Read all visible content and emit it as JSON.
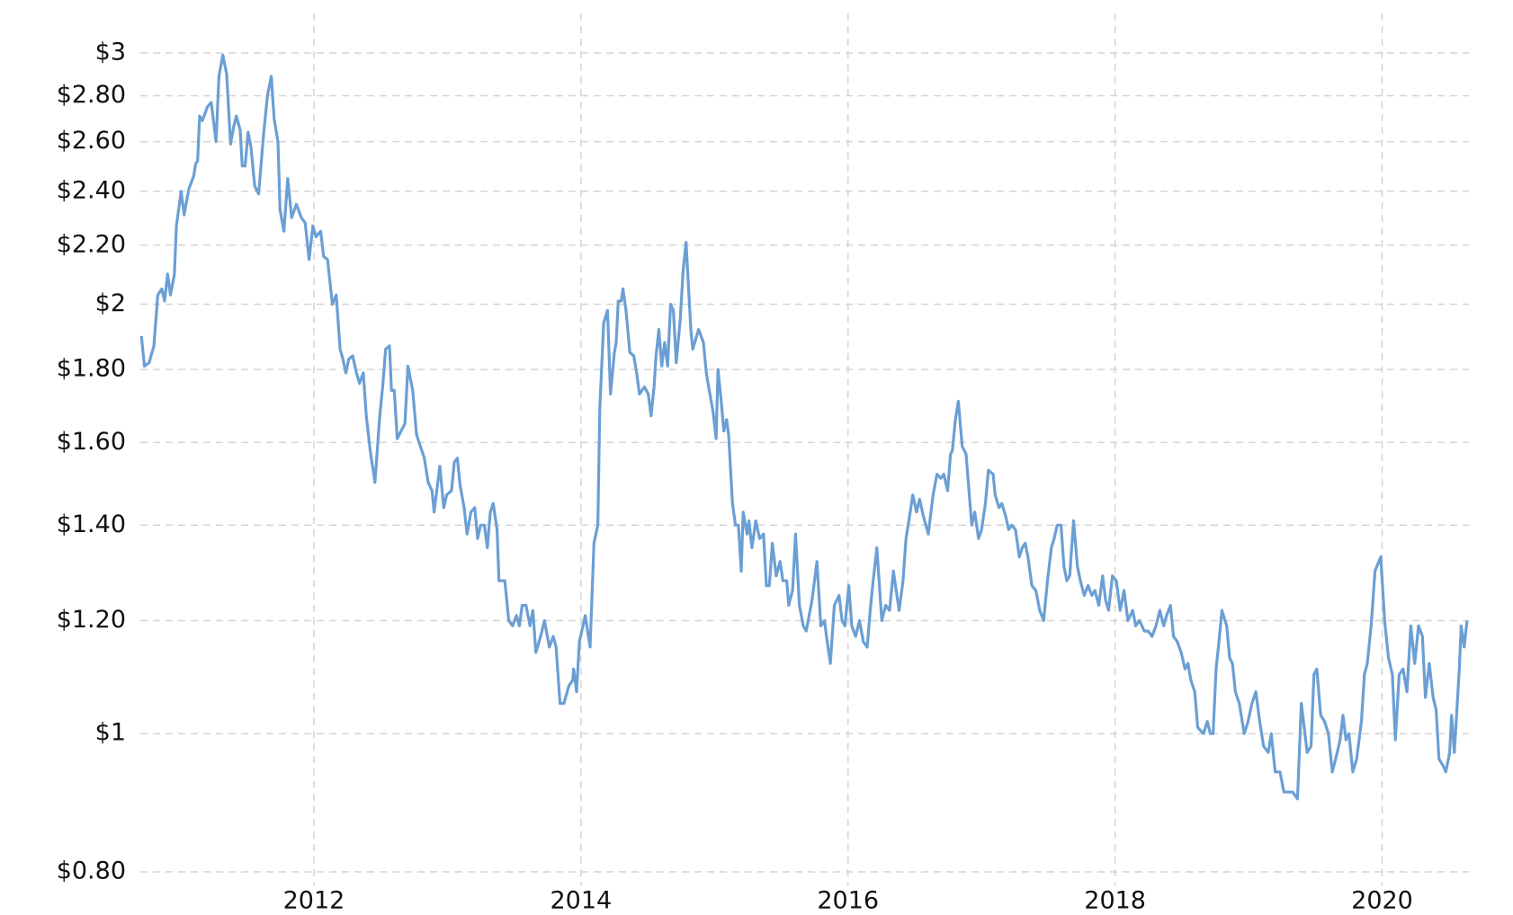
{
  "chart_data": {
    "type": "line",
    "log_scale": true,
    "grid": true,
    "color": "#6b9fd4",
    "xlim": [
      2010.7,
      2020.65
    ],
    "xticks": [
      2012,
      2014,
      2016,
      2018,
      2020
    ],
    "ylim": [
      0.8,
      3
    ],
    "yticks": [
      {
        "value": 0.8,
        "label": "$0.80"
      },
      {
        "value": 1,
        "label": "$1"
      },
      {
        "value": 1.2,
        "label": "$1.20"
      },
      {
        "value": 1.4,
        "label": "$1.40"
      },
      {
        "value": 1.6,
        "label": "$1.60"
      },
      {
        "value": 1.8,
        "label": "$1.80"
      },
      {
        "value": 2,
        "label": "$2"
      },
      {
        "value": 2.2,
        "label": "$2.20"
      },
      {
        "value": 2.4,
        "label": "$2.40"
      },
      {
        "value": 2.6,
        "label": "$2.60"
      },
      {
        "value": 2.8,
        "label": "$2.80"
      },
      {
        "value": 3,
        "label": "$3"
      }
    ],
    "x": [
      2010.708,
      2010.73,
      2010.766,
      2010.802,
      2010.831,
      2010.861,
      2010.882,
      2010.904,
      2010.926,
      2010.955,
      2010.97,
      2011.006,
      2011.028,
      2011.064,
      2011.1,
      2011.115,
      2011.129,
      2011.144,
      2011.165,
      2011.202,
      2011.231,
      2011.267,
      2011.289,
      2011.318,
      2011.347,
      2011.376,
      2011.398,
      2011.419,
      2011.448,
      2011.463,
      2011.485,
      2011.507,
      2011.528,
      2011.557,
      2011.586,
      2011.623,
      2011.652,
      2011.681,
      2011.702,
      2011.731,
      2011.746,
      2011.775,
      2011.804,
      2011.833,
      2011.869,
      2011.906,
      2011.935,
      2011.964,
      2011.993,
      2012.015,
      2012.051,
      2012.073,
      2012.102,
      2012.138,
      2012.167,
      2012.196,
      2012.218,
      2012.239,
      2012.261,
      2012.29,
      2012.319,
      2012.341,
      2012.37,
      2012.392,
      2012.421,
      2012.457,
      2012.493,
      2012.515,
      2012.537,
      2012.566,
      2012.581,
      2012.602,
      2012.624,
      2012.653,
      2012.682,
      2012.704,
      2012.74,
      2012.769,
      2012.798,
      2012.827,
      2012.856,
      2012.885,
      2012.9,
      2012.943,
      2012.972,
      2012.994,
      2013.03,
      2013.052,
      2013.074,
      2013.096,
      2013.125,
      2013.147,
      2013.176,
      2013.205,
      2013.226,
      2013.248,
      2013.277,
      2013.299,
      2013.321,
      2013.343,
      2013.372,
      2013.386,
      2013.43,
      2013.459,
      2013.488,
      2013.517,
      2013.539,
      2013.56,
      2013.589,
      2013.618,
      2013.64,
      2013.662,
      2013.698,
      2013.727,
      2013.763,
      2013.792,
      2013.814,
      2013.843,
      2013.872,
      2013.909,
      2013.938,
      2013.945,
      2013.967,
      2013.988,
      2014.032,
      2014.068,
      2014.097,
      2014.126,
      2014.141,
      2014.17,
      2014.199,
      2014.221,
      2014.25,
      2014.264,
      2014.279,
      2014.301,
      2014.315,
      2014.337,
      2014.366,
      2014.395,
      2014.417,
      2014.438,
      2014.475,
      2014.504,
      2014.525,
      2014.547,
      2014.562,
      2014.583,
      2014.605,
      2014.627,
      2014.649,
      2014.671,
      2014.692,
      2014.714,
      2014.743,
      2014.765,
      2014.787,
      2014.823,
      2014.837,
      2014.881,
      2014.917,
      2014.939,
      2014.961,
      2014.99,
      2015.012,
      2015.026,
      2015.048,
      2015.07,
      2015.091,
      2015.106,
      2015.135,
      2015.157,
      2015.179,
      2015.2,
      2015.215,
      2015.244,
      2015.258,
      2015.28,
      2015.309,
      2015.338,
      2015.367,
      2015.389,
      2015.411,
      2015.433,
      2015.462,
      2015.491,
      2015.512,
      2015.541,
      2015.556,
      2015.585,
      2015.607,
      2015.636,
      2015.665,
      2015.687,
      2015.73,
      2015.767,
      2015.796,
      2015.824,
      2015.839,
      2015.868,
      2015.897,
      2015.933,
      2015.955,
      2015.977,
      2016.006,
      2016.028,
      2016.057,
      2016.086,
      2016.115,
      2016.144,
      2016.166,
      2016.188,
      2016.216,
      2016.253,
      2016.282,
      2016.311,
      2016.34,
      2016.361,
      2016.383,
      2016.412,
      2016.434,
      2016.456,
      2016.485,
      2016.514,
      2016.536,
      2016.565,
      2016.601,
      2016.637,
      2016.666,
      2016.695,
      2016.717,
      2016.746,
      2016.768,
      2016.782,
      2016.804,
      2016.826,
      2016.855,
      2016.884,
      2016.906,
      2016.927,
      2016.949,
      2016.978,
      2017.0,
      2017.029,
      2017.051,
      2017.087,
      2017.102,
      2017.131,
      2017.152,
      2017.181,
      2017.203,
      2017.225,
      2017.254,
      2017.283,
      2017.305,
      2017.327,
      2017.348,
      2017.377,
      2017.406,
      2017.436,
      2017.465,
      2017.494,
      2017.523,
      2017.544,
      2017.566,
      2017.595,
      2017.617,
      2017.639,
      2017.66,
      2017.689,
      2017.718,
      2017.74,
      2017.769,
      2017.798,
      2017.827,
      2017.849,
      2017.878,
      2017.907,
      2017.929,
      2017.951,
      2017.98,
      2018.009,
      2018.038,
      2018.067,
      2018.096,
      2018.132,
      2018.154,
      2018.183,
      2018.219,
      2018.248,
      2018.277,
      2018.306,
      2018.335,
      2018.364,
      2018.386,
      2018.415,
      2018.438,
      2018.466,
      2018.495,
      2018.524,
      2018.546,
      2018.568,
      2018.597,
      2018.619,
      2018.662,
      2018.691,
      2018.713,
      2018.734,
      2018.756,
      2018.778,
      2018.8,
      2018.836,
      2018.858,
      2018.879,
      2018.901,
      2018.93,
      2018.967,
      2018.996,
      2019.025,
      2019.054,
      2019.083,
      2019.112,
      2019.148,
      2019.17,
      2019.199,
      2019.235,
      2019.264,
      2019.293,
      2019.33,
      2019.366,
      2019.395,
      2019.439,
      2019.468,
      2019.489,
      2019.511,
      2019.54,
      2019.569,
      2019.598,
      2019.627,
      2019.664,
      2019.685,
      2019.707,
      2019.729,
      2019.751,
      2019.78,
      2019.809,
      2019.845,
      2019.867,
      2019.889,
      2019.918,
      2019.947,
      2019.961,
      2019.99,
      2020.019,
      2020.048,
      2020.077,
      2020.099,
      2020.128,
      2020.157,
      2020.186,
      2020.215,
      2020.244,
      2020.273,
      2020.302,
      2020.324,
      2020.353,
      2020.382,
      2020.404,
      2020.426,
      2020.455,
      2020.477,
      2020.506,
      2020.52,
      2020.541,
      2020.578,
      2020.592,
      2020.614,
      2020.636
    ],
    "values": [
      1.9,
      1.81,
      1.82,
      1.87,
      2.03,
      2.05,
      2.01,
      2.1,
      2.03,
      2.1,
      2.27,
      2.4,
      2.31,
      2.41,
      2.46,
      2.51,
      2.52,
      2.71,
      2.69,
      2.75,
      2.77,
      2.6,
      2.89,
      2.99,
      2.9,
      2.59,
      2.66,
      2.71,
      2.65,
      2.5,
      2.5,
      2.64,
      2.58,
      2.42,
      2.39,
      2.63,
      2.8,
      2.89,
      2.7,
      2.6,
      2.33,
      2.25,
      2.45,
      2.3,
      2.35,
      2.3,
      2.28,
      2.15,
      2.27,
      2.23,
      2.25,
      2.16,
      2.15,
      2.0,
      2.03,
      1.86,
      1.83,
      1.79,
      1.83,
      1.84,
      1.79,
      1.76,
      1.79,
      1.67,
      1.58,
      1.5,
      1.67,
      1.75,
      1.86,
      1.87,
      1.74,
      1.74,
      1.61,
      1.63,
      1.65,
      1.81,
      1.74,
      1.62,
      1.59,
      1.56,
      1.5,
      1.48,
      1.43,
      1.54,
      1.44,
      1.47,
      1.48,
      1.55,
      1.56,
      1.49,
      1.44,
      1.38,
      1.43,
      1.44,
      1.37,
      1.4,
      1.4,
      1.35,
      1.43,
      1.45,
      1.39,
      1.28,
      1.28,
      1.2,
      1.19,
      1.21,
      1.19,
      1.23,
      1.23,
      1.19,
      1.22,
      1.14,
      1.17,
      1.2,
      1.15,
      1.17,
      1.15,
      1.05,
      1.05,
      1.08,
      1.09,
      1.11,
      1.07,
      1.16,
      1.21,
      1.15,
      1.36,
      1.4,
      1.69,
      1.94,
      1.98,
      1.73,
      1.85,
      1.88,
      2.01,
      2.01,
      2.05,
      1.98,
      1.85,
      1.84,
      1.79,
      1.73,
      1.75,
      1.73,
      1.67,
      1.75,
      1.84,
      1.92,
      1.81,
      1.88,
      1.81,
      2.0,
      1.98,
      1.82,
      1.95,
      2.11,
      2.21,
      1.92,
      1.86,
      1.92,
      1.88,
      1.79,
      1.74,
      1.68,
      1.61,
      1.8,
      1.72,
      1.63,
      1.66,
      1.62,
      1.45,
      1.4,
      1.4,
      1.3,
      1.43,
      1.38,
      1.41,
      1.35,
      1.41,
      1.37,
      1.38,
      1.27,
      1.27,
      1.36,
      1.29,
      1.32,
      1.28,
      1.28,
      1.23,
      1.26,
      1.38,
      1.23,
      1.19,
      1.18,
      1.24,
      1.32,
      1.19,
      1.2,
      1.17,
      1.12,
      1.23,
      1.25,
      1.2,
      1.19,
      1.27,
      1.19,
      1.17,
      1.2,
      1.16,
      1.15,
      1.22,
      1.28,
      1.35,
      1.2,
      1.23,
      1.22,
      1.3,
      1.26,
      1.22,
      1.28,
      1.37,
      1.41,
      1.47,
      1.43,
      1.46,
      1.42,
      1.38,
      1.47,
      1.52,
      1.51,
      1.52,
      1.48,
      1.57,
      1.58,
      1.66,
      1.71,
      1.59,
      1.57,
      1.48,
      1.4,
      1.43,
      1.37,
      1.39,
      1.45,
      1.53,
      1.52,
      1.47,
      1.44,
      1.45,
      1.42,
      1.39,
      1.4,
      1.39,
      1.33,
      1.35,
      1.36,
      1.33,
      1.27,
      1.26,
      1.22,
      1.2,
      1.28,
      1.35,
      1.37,
      1.4,
      1.4,
      1.31,
      1.28,
      1.29,
      1.41,
      1.31,
      1.28,
      1.25,
      1.27,
      1.25,
      1.26,
      1.23,
      1.29,
      1.24,
      1.22,
      1.29,
      1.28,
      1.22,
      1.26,
      1.2,
      1.22,
      1.19,
      1.2,
      1.18,
      1.18,
      1.17,
      1.19,
      1.22,
      1.19,
      1.21,
      1.23,
      1.17,
      1.16,
      1.14,
      1.11,
      1.12,
      1.09,
      1.07,
      1.01,
      1.0,
      1.02,
      1.0,
      1.0,
      1.11,
      1.16,
      1.22,
      1.19,
      1.13,
      1.12,
      1.07,
      1.05,
      1.0,
      1.02,
      1.05,
      1.07,
      1.02,
      0.98,
      0.97,
      1.0,
      0.94,
      0.94,
      0.91,
      0.91,
      0.91,
      0.9,
      1.05,
      0.97,
      0.98,
      1.1,
      1.11,
      1.03,
      1.02,
      1.0,
      0.94,
      0.97,
      0.99,
      1.03,
      0.99,
      1.0,
      0.94,
      0.96,
      1.02,
      1.1,
      1.12,
      1.19,
      1.3,
      1.31,
      1.33,
      1.2,
      1.13,
      1.1,
      0.99,
      1.1,
      1.11,
      1.07,
      1.19,
      1.12,
      1.19,
      1.17,
      1.06,
      1.12,
      1.06,
      1.04,
      0.96,
      0.95,
      0.94,
      0.97,
      1.03,
      0.97,
      1.11,
      1.19,
      1.15,
      1.2
    ]
  }
}
